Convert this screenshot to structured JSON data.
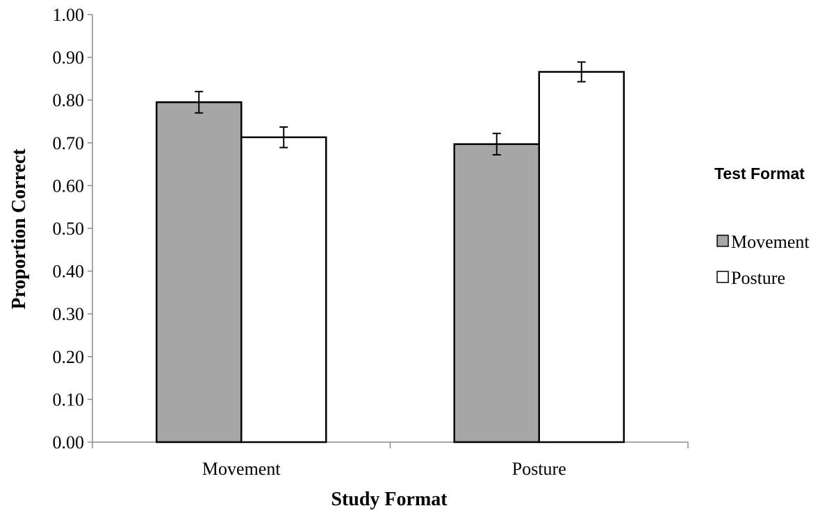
{
  "chart_data": {
    "type": "bar",
    "title": "",
    "xlabel": "Study Format",
    "ylabel": "Proportion Correct",
    "categories": [
      "Movement",
      "Posture"
    ],
    "series": [
      {
        "name": "Movement",
        "values": [
          0.795,
          0.697
        ],
        "errors": [
          0.025,
          0.025
        ],
        "color": "#a6a6a6"
      },
      {
        "name": "Posture",
        "values": [
          0.713,
          0.866
        ],
        "errors": [
          0.024,
          0.023
        ],
        "color": "#ffffff"
      }
    ],
    "ylim": [
      0,
      1
    ],
    "yticks": [
      "0.00",
      "0.10",
      "0.20",
      "0.30",
      "0.40",
      "0.50",
      "0.60",
      "0.70",
      "0.80",
      "0.90",
      "1.00"
    ],
    "grid": false,
    "legend": {
      "title": "Test Format",
      "position": "right"
    }
  }
}
